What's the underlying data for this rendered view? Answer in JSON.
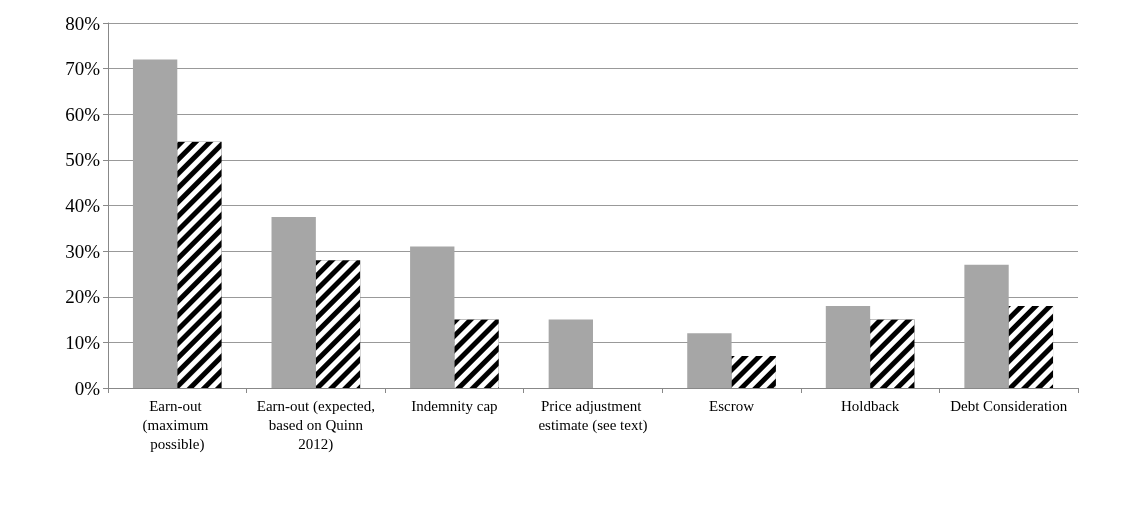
{
  "chart_data": {
    "type": "bar",
    "categories": [
      "Earn-out (maximum possible)",
      "Earn-out (expected, based on Quinn 2012)",
      "Indemnity cap",
      "Price adjustment estimate (see text)",
      "Escrow",
      "Holdback",
      "Debt Consideration"
    ],
    "series": [
      {
        "color": "#a6a6a6",
        "values": [
          72,
          37.5,
          31,
          15,
          12,
          18,
          27
        ]
      },
      {
        "color": "#000000",
        "values": [
          54,
          28,
          15,
          null,
          7,
          15,
          18
        ]
      }
    ],
    "ylim": [
      0,
      80
    ],
    "yticks": [
      {
        "value": 0,
        "label": "0%"
      },
      {
        "value": 10,
        "label": "10%"
      },
      {
        "value": 20,
        "label": "20%"
      },
      {
        "value": 30,
        "label": "30%"
      },
      {
        "value": 40,
        "label": "40%"
      },
      {
        "value": 50,
        "label": "50%"
      },
      {
        "value": 60,
        "label": "60%"
      },
      {
        "value": 70,
        "label": "70%"
      },
      {
        "value": 80,
        "label": "80%"
      }
    ],
    "grid": "y"
  }
}
